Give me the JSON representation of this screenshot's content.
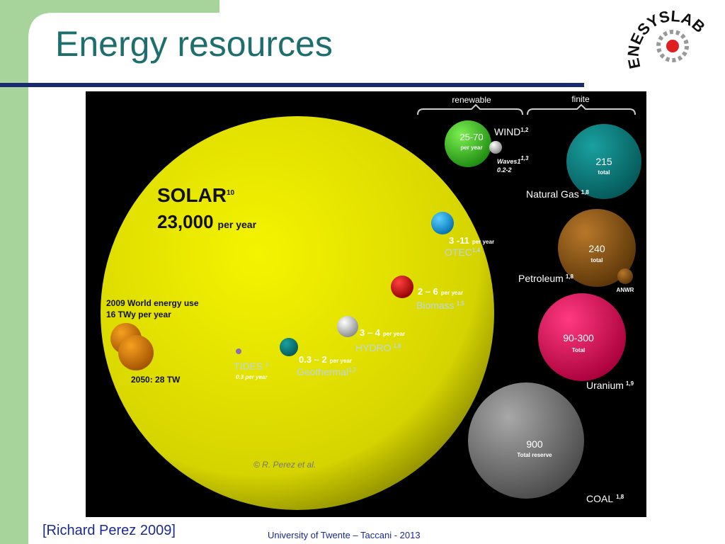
{
  "header": {
    "title": "Energy resources",
    "logo": "ENESYSLAB"
  },
  "figure": {
    "groups": [
      "renewable",
      "finite"
    ],
    "world_use": {
      "line1": "2009 World energy use",
      "line2": "16 TWy  per year",
      "future": "2050:  28 TW"
    },
    "nodes": [
      {
        "name": "SOLAR",
        "ref": "10",
        "value": "23,000",
        "unit": "per year"
      },
      {
        "value": "25-70",
        "unit": "per year",
        "name": "WIND",
        "ref": "1,2"
      },
      {
        "name": "Waves1",
        "ref": "1,3",
        "value": "0.2-2"
      },
      {
        "value": "215",
        "unit": "total",
        "name": "Natural Gas",
        "ref": "1,8"
      },
      {
        "value": "3 -11",
        "unit": "per year",
        "name": "OTEC",
        "ref": "1,4"
      },
      {
        "value": "240",
        "unit": "total",
        "name": "Petroleum",
        "ref": "1,8"
      },
      {
        "name": "ANWR"
      },
      {
        "value": "2 – 6",
        "unit": "per year",
        "name": "Biomass",
        "ref": "1,5"
      },
      {
        "value": "3 – 4",
        "unit": "per year",
        "name": "HYDRO",
        "ref": "1,6"
      },
      {
        "value": "0.3 – 2",
        "unit": "per year",
        "name": "Geothermal",
        "ref": "1,7"
      },
      {
        "name": "TIDES",
        "ref": "1",
        "value": "0.3 per year"
      },
      {
        "value": "90-300",
        "unit": "Total",
        "name": "Uranium",
        "ref": "1,9"
      },
      {
        "value": "900",
        "unit": "Total reserve",
        "name": "COAL",
        "ref": "1,8"
      }
    ],
    "credit": "© R. Perez et al."
  },
  "footer": {
    "source": "[Richard Perez 2009]",
    "institution": "University of Twente – Taccani - 2013"
  }
}
